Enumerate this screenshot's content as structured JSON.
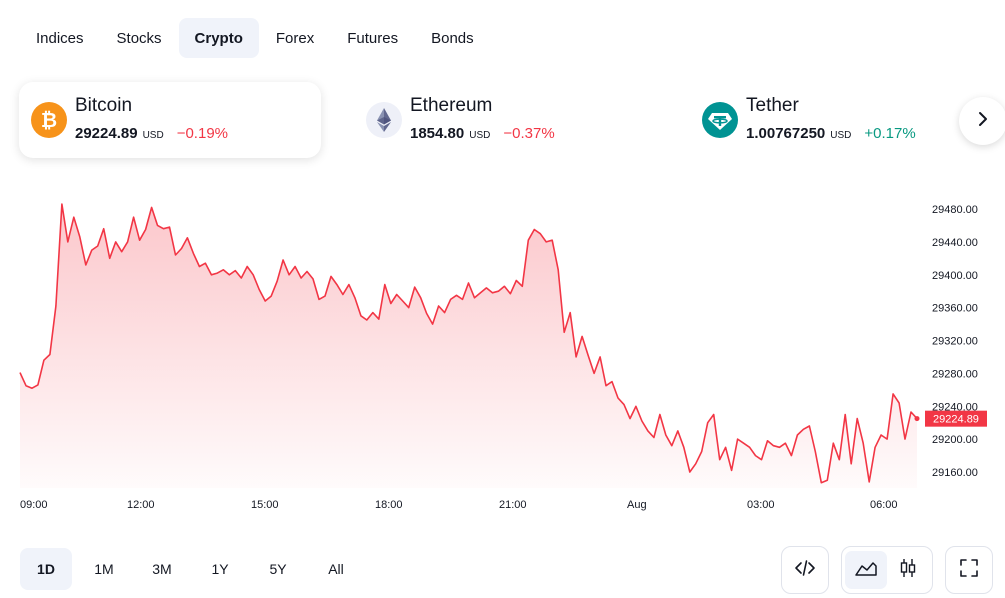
{
  "tabs": [
    {
      "label": "Indices",
      "active": false
    },
    {
      "label": "Stocks",
      "active": false
    },
    {
      "label": "Crypto",
      "active": true
    },
    {
      "label": "Forex",
      "active": false
    },
    {
      "label": "Futures",
      "active": false
    },
    {
      "label": "Bonds",
      "active": false
    }
  ],
  "coins": [
    {
      "name": "Bitcoin",
      "price": "29224.89",
      "currency": "USD",
      "change": "−0.19%",
      "direction": "down",
      "icon": "bitcoin-icon",
      "color": "#f7931a",
      "active": true
    },
    {
      "name": "Ethereum",
      "price": "1854.80",
      "currency": "USD",
      "change": "−0.37%",
      "direction": "down",
      "icon": "ethereum-icon",
      "color": "#627eea",
      "active": false
    },
    {
      "name": "Tether",
      "price": "1.00767250",
      "currency": "USD",
      "change": "+0.17%",
      "direction": "up",
      "icon": "tether-icon",
      "color": "#009393",
      "active": false
    }
  ],
  "chart_data": {
    "type": "area",
    "series": [
      {
        "values": [
          29281,
          29265,
          29262,
          29266,
          29296,
          29303,
          29362,
          29486,
          29440,
          29470,
          29446,
          29412,
          29430,
          29435,
          29456,
          29420,
          29440,
          29428,
          29440,
          29470,
          29442,
          29455,
          29482,
          29460,
          29456,
          29458,
          29424,
          29432,
          29445,
          29426,
          29410,
          29414,
          29400,
          29402,
          29406,
          29400,
          29405,
          29396,
          29410,
          29400,
          29382,
          29368,
          29374,
          29392,
          29418,
          29400,
          29410,
          29396,
          29404,
          29395,
          29370,
          29374,
          29398,
          29388,
          29376,
          29388,
          29372,
          29350,
          29345,
          29354,
          29346,
          29388,
          29365,
          29376,
          29368,
          29360,
          29385,
          29372,
          29353,
          29340,
          29362,
          29354,
          29370,
          29375,
          29370,
          29390,
          29372,
          29378,
          29384,
          29378,
          29380,
          29386,
          29377,
          29393,
          29386,
          29442,
          29455,
          29450,
          29440,
          29442,
          29406,
          29330,
          29354,
          29300,
          29325,
          29302,
          29280,
          29300,
          29265,
          29270,
          29250,
          29242,
          29225,
          29240,
          29222,
          29210,
          29202,
          29230,
          29205,
          29192,
          29210,
          29190,
          29160,
          29170,
          29185,
          29220,
          29230,
          29175,
          29190,
          29162,
          29200,
          29195,
          29190,
          29180,
          29175,
          29198,
          29192,
          29190,
          29195,
          29180,
          29205,
          29212,
          29216,
          29185,
          29147,
          29150,
          29195,
          29175,
          29230,
          29170,
          29225,
          29195,
          29148,
          29190,
          29205,
          29200,
          29255,
          29244,
          29200,
          29233,
          29225
        ]
      }
    ],
    "x_tick_labels": [
      "09:00",
      "12:00",
      "15:00",
      "18:00",
      "21:00",
      "Aug",
      "03:00",
      "06:00"
    ],
    "y_tick_labels": [
      "29480.00",
      "29440.00",
      "29400.00",
      "29360.00",
      "29320.00",
      "29280.00",
      "29240.00",
      "29200.00",
      "29160.00"
    ],
    "ylim": [
      29130,
      29505
    ],
    "last_value_label": "29224.89",
    "line_color": "#f23645",
    "grid": false
  },
  "ranges": [
    {
      "label": "1D",
      "active": true
    },
    {
      "label": "1M",
      "active": false
    },
    {
      "label": "3M",
      "active": false
    },
    {
      "label": "1Y",
      "active": false
    },
    {
      "label": "5Y",
      "active": false
    },
    {
      "label": "All",
      "active": false
    }
  ],
  "tools": {
    "embed": "code-icon",
    "area": "area-chart-icon",
    "candles": "candlestick-icon",
    "fullscreen": "fullscreen-icon"
  }
}
